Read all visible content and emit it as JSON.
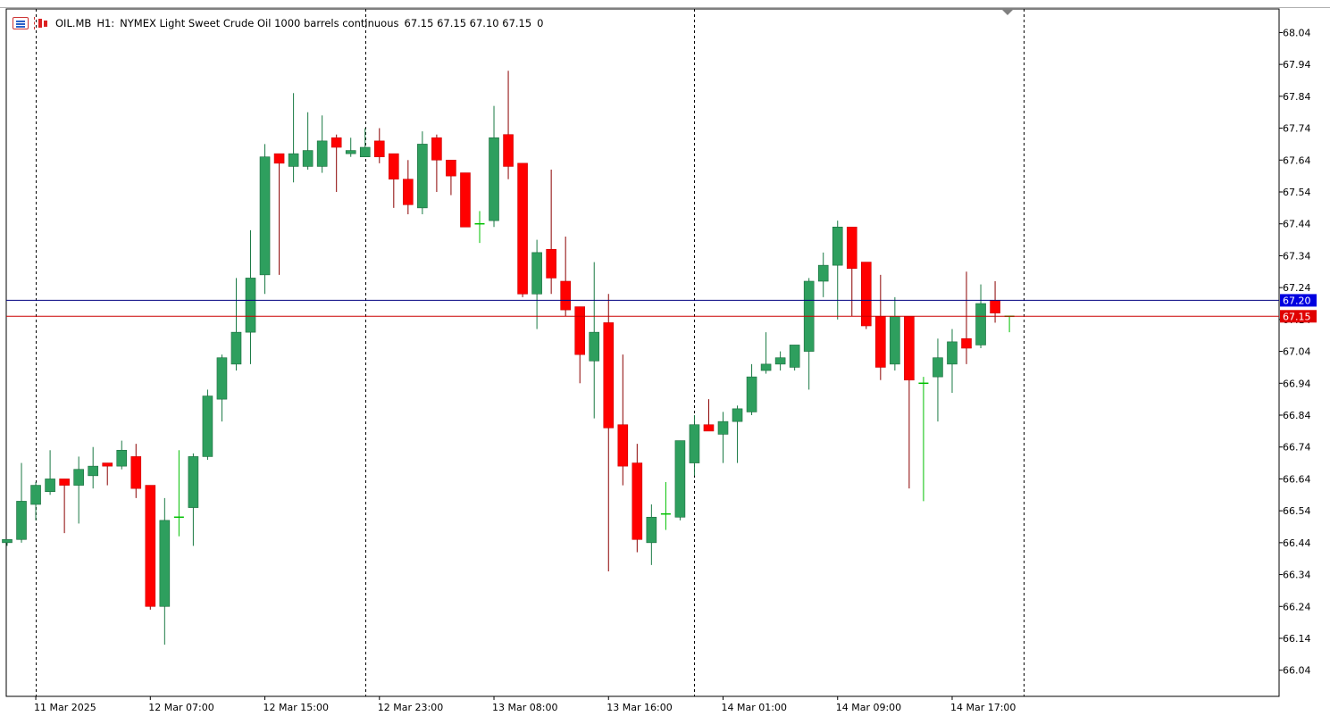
{
  "header": {
    "symbol": "OIL.MB",
    "timeframe": "H1:",
    "description": "NYMEX Light Sweet Crude Oil 1000 barrels continuous",
    "ohlc": "67.15 67.15 67.10 67.15",
    "volume": "0"
  },
  "icons": {
    "chart_type": "chart-type-icon",
    "bars": "bars-icon",
    "shift": "chart-shift-marker-icon"
  },
  "colors": {
    "bull": "#2e9f5e",
    "bear": "#ff0000",
    "doji": "#00c000",
    "bid_line": "#000080",
    "ask_line": "#cc0000",
    "bid_tag": "#0000e0",
    "ask_tag": "#e00000"
  },
  "price_axis": {
    "ticks": [
      "68.04",
      "67.94",
      "67.84",
      "67.74",
      "67.64",
      "67.54",
      "67.44",
      "67.34",
      "67.24",
      "67.14",
      "67.04",
      "66.94",
      "66.84",
      "66.74",
      "66.64",
      "66.54",
      "66.44",
      "66.34",
      "66.24",
      "66.14",
      "66.04"
    ],
    "min": 65.958,
    "max": 68.114
  },
  "time_axis": {
    "labels": [
      "11 Mar 2025",
      "12 Mar 07:00",
      "12 Mar 15:00",
      "12 Mar 23:00",
      "13 Mar 08:00",
      "13 Mar 16:00",
      "14 Mar 01:00",
      "14 Mar 09:00",
      "14 Mar 17:00"
    ],
    "label_bars": [
      2,
      10,
      18,
      26,
      34,
      42,
      50,
      58,
      66
    ]
  },
  "price_tags": {
    "bid": "67.20",
    "ask": "67.15"
  },
  "separators": [
    2,
    25,
    48,
    71
  ],
  "chart_data": {
    "type": "candlestick",
    "title": "OIL.MB, H1: NYMEX Light Sweet Crude Oil 1000 barrels continuous",
    "ylim": [
      65.958,
      68.114
    ],
    "bid": 67.2,
    "ask": 67.15,
    "candles": [
      {
        "o": 66.44,
        "h": 66.45,
        "l": 66.43,
        "c": 66.45
      },
      {
        "o": 66.45,
        "h": 66.69,
        "l": 66.44,
        "c": 66.57
      },
      {
        "o": 66.56,
        "h": 66.63,
        "l": 66.51,
        "c": 66.62
      },
      {
        "o": 66.6,
        "h": 66.73,
        "l": 66.59,
        "c": 66.64
      },
      {
        "o": 66.64,
        "h": 66.64,
        "l": 66.47,
        "c": 66.62
      },
      {
        "o": 66.62,
        "h": 66.71,
        "l": 66.5,
        "c": 66.67
      },
      {
        "o": 66.65,
        "h": 66.74,
        "l": 66.61,
        "c": 66.68
      },
      {
        "o": 66.69,
        "h": 66.69,
        "l": 66.62,
        "c": 66.68
      },
      {
        "o": 66.68,
        "h": 66.76,
        "l": 66.67,
        "c": 66.73
      },
      {
        "o": 66.71,
        "h": 66.75,
        "l": 66.58,
        "c": 66.61
      },
      {
        "o": 66.62,
        "h": 66.62,
        "l": 66.23,
        "c": 66.24
      },
      {
        "o": 66.24,
        "h": 66.58,
        "l": 66.12,
        "c": 66.51
      },
      {
        "o": 66.52,
        "h": 66.73,
        "l": 66.46,
        "c": 66.52
      },
      {
        "o": 66.55,
        "h": 66.72,
        "l": 66.43,
        "c": 66.71
      },
      {
        "o": 66.71,
        "h": 66.92,
        "l": 66.7,
        "c": 66.9
      },
      {
        "o": 66.89,
        "h": 67.03,
        "l": 66.82,
        "c": 67.02
      },
      {
        "o": 67.0,
        "h": 67.27,
        "l": 66.98,
        "c": 67.1
      },
      {
        "o": 67.1,
        "h": 67.42,
        "l": 67.0,
        "c": 67.27
      },
      {
        "o": 67.28,
        "h": 67.69,
        "l": 67.22,
        "c": 67.65
      },
      {
        "o": 67.66,
        "h": 67.66,
        "l": 67.28,
        "c": 67.63
      },
      {
        "o": 67.62,
        "h": 67.85,
        "l": 67.57,
        "c": 67.66
      },
      {
        "o": 67.62,
        "h": 67.79,
        "l": 67.61,
        "c": 67.67
      },
      {
        "o": 67.62,
        "h": 67.78,
        "l": 67.6,
        "c": 67.7
      },
      {
        "o": 67.71,
        "h": 67.72,
        "l": 67.54,
        "c": 67.68
      },
      {
        "o": 67.66,
        "h": 67.71,
        "l": 67.65,
        "c": 67.67
      },
      {
        "o": 67.65,
        "h": 67.74,
        "l": 67.65,
        "c": 67.68
      },
      {
        "o": 67.7,
        "h": 67.74,
        "l": 67.63,
        "c": 67.65
      },
      {
        "o": 67.66,
        "h": 67.66,
        "l": 67.49,
        "c": 67.58
      },
      {
        "o": 67.58,
        "h": 67.64,
        "l": 67.47,
        "c": 67.5
      },
      {
        "o": 67.49,
        "h": 67.73,
        "l": 67.47,
        "c": 67.69
      },
      {
        "o": 67.71,
        "h": 67.72,
        "l": 67.54,
        "c": 67.64
      },
      {
        "o": 67.64,
        "h": 67.64,
        "l": 67.53,
        "c": 67.59
      },
      {
        "o": 67.6,
        "h": 67.6,
        "l": 67.43,
        "c": 67.43
      },
      {
        "o": 67.44,
        "h": 67.48,
        "l": 67.38,
        "c": 67.44
      },
      {
        "o": 67.45,
        "h": 67.81,
        "l": 67.43,
        "c": 67.71
      },
      {
        "o": 67.72,
        "h": 67.92,
        "l": 67.58,
        "c": 67.62
      },
      {
        "o": 67.63,
        "h": 67.63,
        "l": 67.21,
        "c": 67.22
      },
      {
        "o": 67.22,
        "h": 67.39,
        "l": 67.11,
        "c": 67.35
      },
      {
        "o": 67.36,
        "h": 67.61,
        "l": 67.22,
        "c": 67.27
      },
      {
        "o": 67.26,
        "h": 67.4,
        "l": 67.15,
        "c": 67.17
      },
      {
        "o": 67.18,
        "h": 67.18,
        "l": 66.94,
        "c": 67.03
      },
      {
        "o": 67.01,
        "h": 67.32,
        "l": 66.83,
        "c": 67.1
      },
      {
        "o": 67.13,
        "h": 67.22,
        "l": 66.35,
        "c": 66.8
      },
      {
        "o": 66.81,
        "h": 67.03,
        "l": 66.62,
        "c": 66.68
      },
      {
        "o": 66.69,
        "h": 66.75,
        "l": 66.41,
        "c": 66.45
      },
      {
        "o": 66.44,
        "h": 66.56,
        "l": 66.37,
        "c": 66.52
      },
      {
        "o": 66.53,
        "h": 66.63,
        "l": 66.48,
        "c": 66.53
      },
      {
        "o": 66.52,
        "h": 66.76,
        "l": 66.51,
        "c": 66.76
      },
      {
        "o": 66.69,
        "h": 66.84,
        "l": 66.65,
        "c": 66.81
      },
      {
        "o": 66.81,
        "h": 66.89,
        "l": 66.79,
        "c": 66.79
      },
      {
        "o": 66.78,
        "h": 66.85,
        "l": 66.69,
        "c": 66.82
      },
      {
        "o": 66.82,
        "h": 66.87,
        "l": 66.69,
        "c": 66.86
      },
      {
        "o": 66.85,
        "h": 67.0,
        "l": 66.84,
        "c": 66.96
      },
      {
        "o": 66.98,
        "h": 67.1,
        "l": 66.97,
        "c": 67.0
      },
      {
        "o": 67.0,
        "h": 67.04,
        "l": 66.98,
        "c": 67.02
      },
      {
        "o": 66.99,
        "h": 67.06,
        "l": 66.98,
        "c": 67.06
      },
      {
        "o": 67.04,
        "h": 67.27,
        "l": 66.92,
        "c": 67.26
      },
      {
        "o": 67.26,
        "h": 67.35,
        "l": 67.21,
        "c": 67.31
      },
      {
        "o": 67.31,
        "h": 67.45,
        "l": 67.14,
        "c": 67.43
      },
      {
        "o": 67.43,
        "h": 67.43,
        "l": 67.15,
        "c": 67.3
      },
      {
        "o": 67.32,
        "h": 67.32,
        "l": 67.11,
        "c": 67.12
      },
      {
        "o": 67.15,
        "h": 67.28,
        "l": 66.95,
        "c": 66.99
      },
      {
        "o": 67.0,
        "h": 67.21,
        "l": 66.98,
        "c": 67.15
      },
      {
        "o": 67.15,
        "h": 67.15,
        "l": 66.61,
        "c": 66.95
      },
      {
        "o": 66.94,
        "h": 66.96,
        "l": 66.57,
        "c": 66.94
      },
      {
        "o": 66.96,
        "h": 67.08,
        "l": 66.82,
        "c": 67.02
      },
      {
        "o": 67.0,
        "h": 67.11,
        "l": 66.91,
        "c": 67.07
      },
      {
        "o": 67.08,
        "h": 67.29,
        "l": 67.0,
        "c": 67.05
      },
      {
        "o": 67.06,
        "h": 67.25,
        "l": 67.05,
        "c": 67.19
      },
      {
        "o": 67.2,
        "h": 67.26,
        "l": 67.13,
        "c": 67.16
      },
      {
        "o": 67.15,
        "h": 67.15,
        "l": 67.1,
        "c": 67.15
      }
    ]
  }
}
